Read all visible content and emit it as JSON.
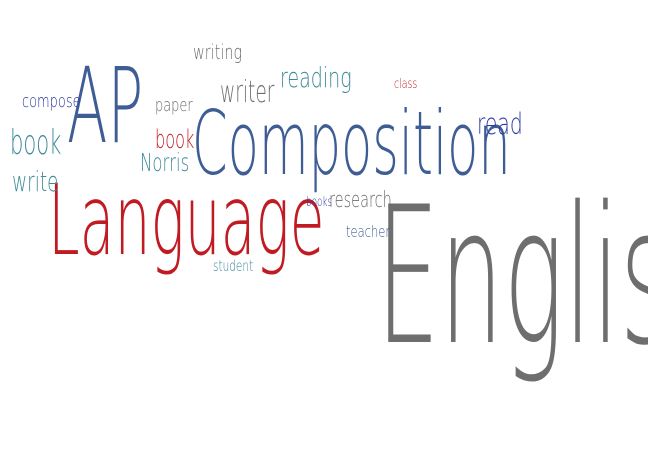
{
  "words": {
    "english": {
      "text": "English",
      "color": "#6e6e6e"
    },
    "composition": {
      "text": "Composition",
      "color": "#3e5d95"
    },
    "language": {
      "text": "Language",
      "color": "#c01b22"
    },
    "ap": {
      "text": "AP",
      "color": "#3e5d95"
    },
    "writing": {
      "text": "writing",
      "color": "#6e6e6e"
    },
    "writer": {
      "text": "writer",
      "color": "#6e6e6e"
    },
    "reading": {
      "text": "reading",
      "color": "#3d8a9a"
    },
    "class": {
      "text": "class",
      "color": "#c01b22"
    },
    "read": {
      "text": "read",
      "color": "#2b3aa0"
    },
    "compose": {
      "text": "compose",
      "color": "#2b3aa0"
    },
    "book_left": {
      "text": "book",
      "color": "#3d8a9a"
    },
    "write": {
      "text": "write",
      "color": "#3d8a9a"
    },
    "paper": {
      "text": "paper",
      "color": "#6e6e6e"
    },
    "book_mid": {
      "text": "book",
      "color": "#c01b22"
    },
    "norris": {
      "text": "Norris",
      "color": "#3d8a9a"
    },
    "books": {
      "text": "books",
      "color": "#2b3aa0"
    },
    "research": {
      "text": "research",
      "color": "#6e6e6e"
    },
    "teacher": {
      "text": "teacher",
      "color": "#3e5d95"
    },
    "student": {
      "text": "student",
      "color": "#3d8a9a"
    }
  }
}
